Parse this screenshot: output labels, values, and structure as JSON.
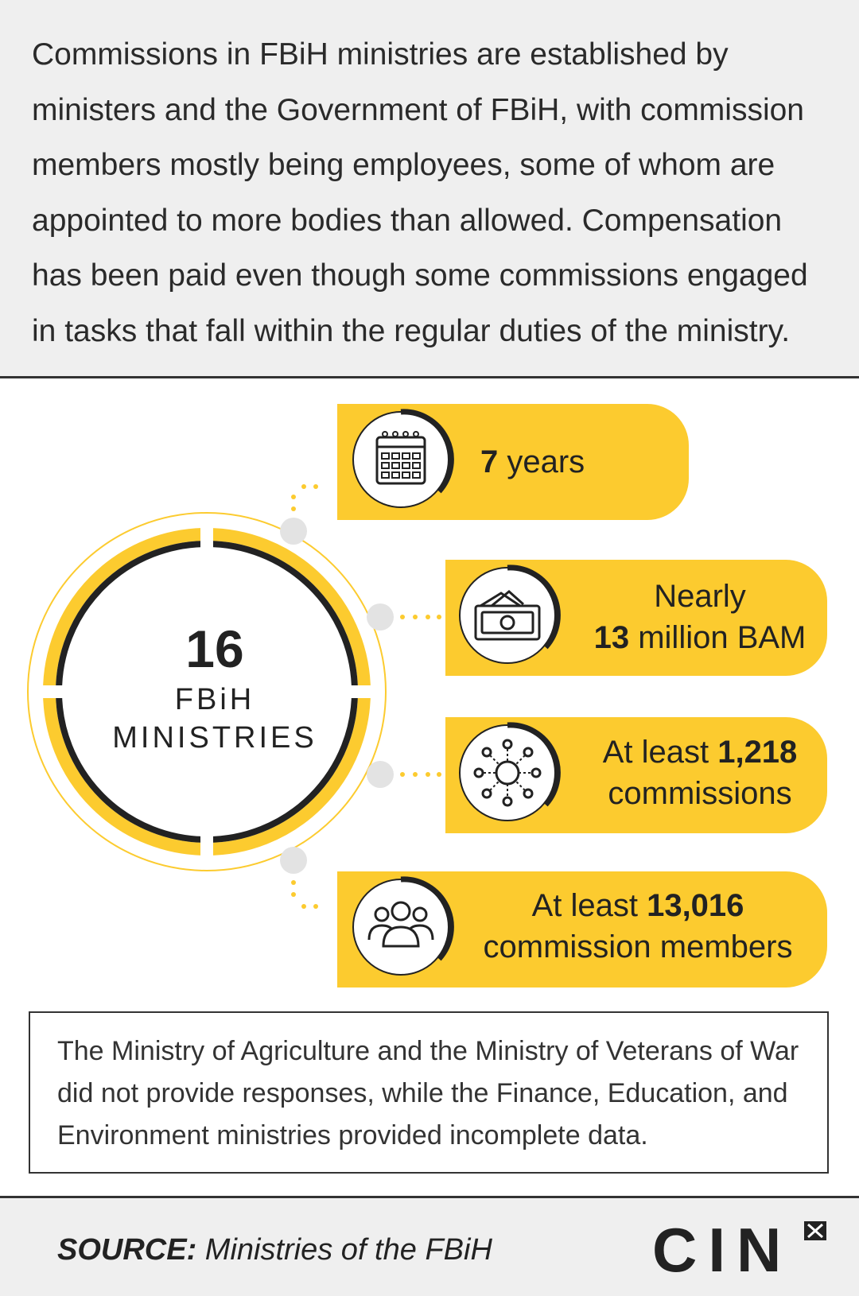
{
  "intro": {
    "text": "Commissions in FBiH ministries are established by ministers and the Government of FBiH, with commission members mostly being employees, some of whom are appointed to more bodies than allowed. Compensation has been paid even though some commissions engaged in tasks that fall within the regular duties of the ministry."
  },
  "center": {
    "number": "16",
    "label_line1": "FBiH",
    "label_line2": "MINISTRIES"
  },
  "items": [
    {
      "icon": "calendar-icon",
      "bold": "7",
      "text": " years",
      "line2": ""
    },
    {
      "icon": "money-icon",
      "line1": "Nearly",
      "bold": "13",
      "text": " million BAM"
    },
    {
      "icon": "network-icon",
      "prefix": "At least ",
      "bold": "1,218",
      "line2": "commissions"
    },
    {
      "icon": "people-icon",
      "prefix": "At least ",
      "bold": "13,016",
      "line2": "commission members"
    }
  ],
  "note": {
    "text": "The Ministry of Agriculture and the Ministry of Veterans of War did not provide responses, while the Finance, Education, and Environment ministries provided incomplete data."
  },
  "footer": {
    "source_label": "SOURCE:",
    "source_text": " Ministries of the FBiH",
    "logo": "CIN"
  },
  "colors": {
    "accent": "#fccb2f",
    "dark": "#222222",
    "panel": "#efefef",
    "connector": "#e3e3e3"
  }
}
